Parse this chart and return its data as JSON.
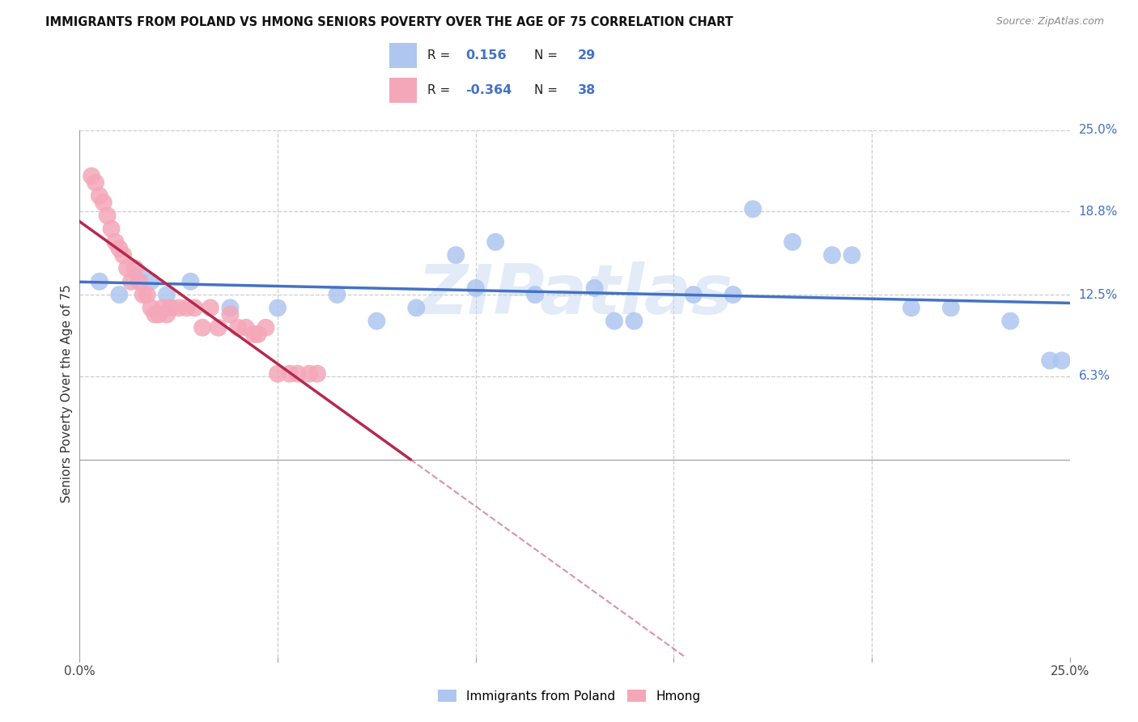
{
  "title": "IMMIGRANTS FROM POLAND VS HMONG SENIORS POVERTY OVER THE AGE OF 75 CORRELATION CHART",
  "source": "Source: ZipAtlas.com",
  "ylabel": "Seniors Poverty Over the Age of 75",
  "xlim": [
    0.0,
    0.25
  ],
  "ylim": [
    -0.15,
    0.25
  ],
  "r_poland": 0.156,
  "n_poland": 29,
  "r_hmong": -0.364,
  "n_hmong": 38,
  "poland_color": "#aec6f0",
  "hmong_color": "#f4a7b9",
  "poland_line_color": "#4472c4",
  "hmong_line_color": "#b5294e",
  "right_label_color": "#4472c4",
  "watermark": "ZIPatlas",
  "poland_scatter_x": [
    0.005,
    0.01,
    0.015,
    0.018,
    0.022,
    0.028,
    0.038,
    0.05,
    0.065,
    0.075,
    0.085,
    0.095,
    0.1,
    0.105,
    0.115,
    0.13,
    0.135,
    0.14,
    0.155,
    0.165,
    0.17,
    0.18,
    0.19,
    0.195,
    0.21,
    0.22,
    0.235,
    0.245,
    0.248
  ],
  "poland_scatter_y": [
    0.135,
    0.125,
    0.14,
    0.135,
    0.125,
    0.135,
    0.115,
    0.115,
    0.125,
    0.105,
    0.115,
    0.155,
    0.13,
    0.165,
    0.125,
    0.13,
    0.105,
    0.105,
    0.125,
    0.125,
    0.19,
    0.165,
    0.155,
    0.155,
    0.115,
    0.115,
    0.105,
    0.075,
    0.075
  ],
  "hmong_scatter_x": [
    0.003,
    0.004,
    0.005,
    0.006,
    0.007,
    0.008,
    0.009,
    0.01,
    0.011,
    0.012,
    0.013,
    0.014,
    0.015,
    0.016,
    0.017,
    0.018,
    0.019,
    0.02,
    0.021,
    0.022,
    0.023,
    0.025,
    0.027,
    0.029,
    0.031,
    0.033,
    0.035,
    0.038,
    0.04,
    0.042,
    0.044,
    0.045,
    0.047,
    0.05,
    0.053,
    0.055,
    0.058,
    0.06
  ],
  "hmong_scatter_y": [
    0.215,
    0.21,
    0.2,
    0.195,
    0.185,
    0.175,
    0.165,
    0.16,
    0.155,
    0.145,
    0.135,
    0.145,
    0.135,
    0.125,
    0.125,
    0.115,
    0.11,
    0.11,
    0.115,
    0.11,
    0.115,
    0.115,
    0.115,
    0.115,
    0.1,
    0.115,
    0.1,
    0.11,
    0.1,
    0.1,
    0.095,
    0.095,
    0.1,
    0.065,
    0.065,
    0.065,
    0.065,
    0.065
  ]
}
